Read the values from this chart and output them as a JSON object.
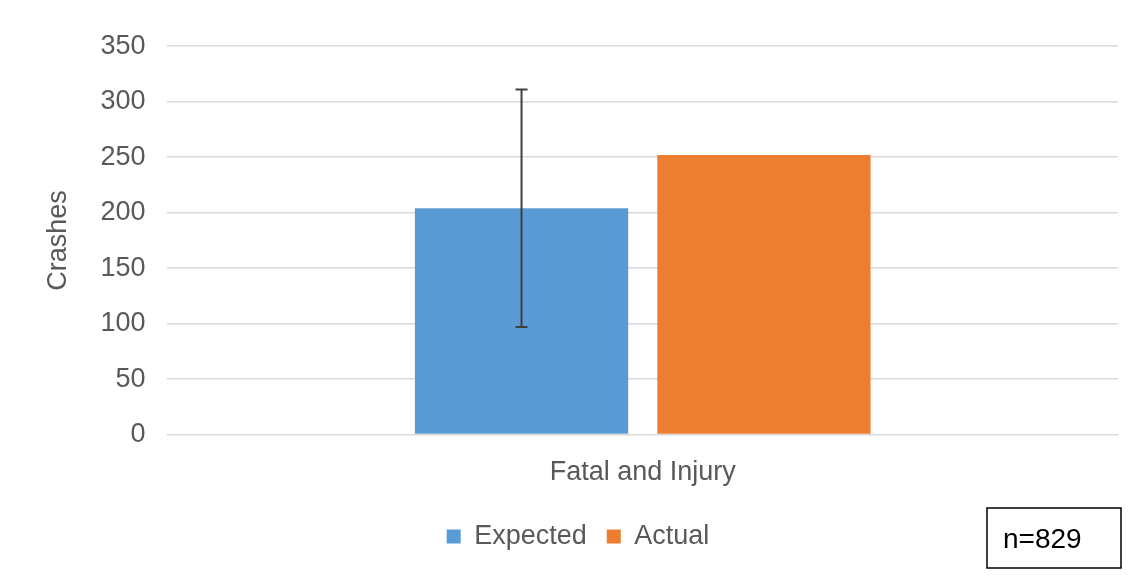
{
  "chart_data": {
    "type": "bar",
    "ylabel": "Crashes",
    "categories": [
      "Fatal and Injury"
    ],
    "series": [
      {
        "name": "Expected",
        "color": "#5b9bd5",
        "values": [
          204
        ],
        "errors": [
          [
            97,
            311
          ]
        ]
      },
      {
        "name": "Actual",
        "color": "#ed7d31",
        "values": [
          252
        ]
      }
    ],
    "ylim": [
      0,
      350
    ],
    "yticks": [
      0,
      50,
      100,
      150,
      200,
      250,
      300,
      350
    ],
    "grid": "y",
    "legend": "bottom",
    "annotations": [
      "n=829"
    ]
  }
}
